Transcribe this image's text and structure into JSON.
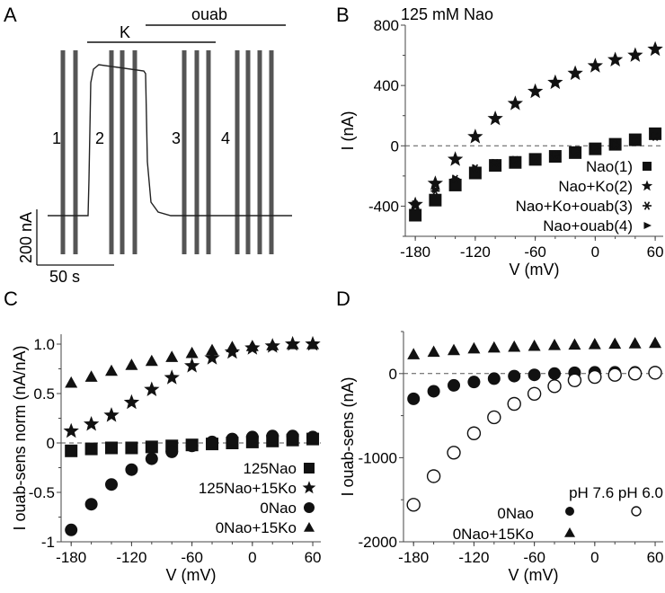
{
  "figure": {
    "panels": [
      "A",
      "B",
      "C",
      "D"
    ]
  },
  "chart_data": [
    {
      "panel": "A",
      "type": "line",
      "title": "",
      "description": "Current trace with voltage-step families",
      "bars": [
        {
          "label": "K",
          "start_frac": 0.17,
          "end_frac": 0.66
        },
        {
          "label": "ouab",
          "start_frac": 0.4,
          "end_frac": 0.93
        }
      ],
      "segment_labels": [
        "1",
        "2",
        "3",
        "4"
      ],
      "scale_bar": {
        "y_label": "200 nA",
        "x_label": "50 s"
      },
      "trace": {
        "baseline_nA": 0,
        "plateau_nA": 440,
        "k_on_frac": 0.16,
        "k_off_frac": 0.4
      },
      "step_groups": [
        2,
        3,
        3,
        4
      ]
    },
    {
      "panel": "B",
      "type": "scatter",
      "title": "125 mM Nao",
      "xlabel": "V (mV)",
      "ylabel": "I (nA)",
      "xlim": [
        -190,
        68
      ],
      "ylim": [
        -600,
        800
      ],
      "xticks": [
        "-180",
        "-120",
        "-60",
        "0",
        "60"
      ],
      "yticks": [
        "800",
        "400",
        "0",
        "-400"
      ],
      "x": [
        -180,
        -160,
        -140,
        -120,
        -100,
        -80,
        -60,
        -40,
        -20,
        0,
        20,
        40,
        60
      ],
      "series": [
        {
          "name": "Nao(1)",
          "marker": "square",
          "values": [
            -460,
            -360,
            -260,
            -180,
            -130,
            -110,
            -90,
            -70,
            -45,
            -20,
            10,
            40,
            80
          ]
        },
        {
          "name": "Nao+Ko(2)",
          "marker": "star",
          "values": [
            -390,
            -250,
            -90,
            60,
            180,
            280,
            360,
            420,
            480,
            530,
            570,
            600,
            640
          ]
        },
        {
          "name": "Nao+Ko+ouab(3)",
          "marker": "asterisk",
          "values": [
            -390,
            -300,
            -220,
            -150,
            -115,
            -95,
            -80,
            -60,
            -40,
            -15,
            5,
            30,
            60
          ]
        },
        {
          "name": "Nao+ouab(4)",
          "marker": "triangle-right",
          "values": [
            -385,
            -290,
            -215,
            -145,
            -110,
            -90,
            -75,
            -55,
            -35,
            -10,
            10,
            35,
            65
          ]
        }
      ]
    },
    {
      "panel": "C",
      "type": "scatter",
      "title": "",
      "xlabel": "V (mV)",
      "ylabel": "I ouab-sens norm (nA/nA)",
      "xlim": [
        -190,
        68
      ],
      "ylim": [
        -1,
        1.1
      ],
      "xticks": [
        "-180",
        "-120",
        "-60",
        "0",
        "60"
      ],
      "yticks": [
        "1.0",
        "0.5",
        "0",
        "-0.5",
        "-1"
      ],
      "x": [
        -180,
        -160,
        -140,
        -120,
        -100,
        -80,
        -60,
        -40,
        -20,
        0,
        20,
        40,
        60
      ],
      "series": [
        {
          "name": "125Nao",
          "marker": "square",
          "values": [
            -0.08,
            -0.06,
            -0.05,
            -0.05,
            -0.04,
            -0.03,
            -0.02,
            -0.01,
            0.0,
            0.01,
            0.02,
            0.03,
            0.04
          ]
        },
        {
          "name": "125Nao+15Ko",
          "marker": "star",
          "values": [
            0.12,
            0.19,
            0.28,
            0.41,
            0.54,
            0.66,
            0.78,
            0.86,
            0.92,
            0.96,
            0.98,
            1.0,
            1.0
          ]
        },
        {
          "name": "0Nao",
          "marker": "circle",
          "values": [
            -0.88,
            -0.62,
            -0.42,
            -0.27,
            -0.16,
            -0.09,
            -0.03,
            0.01,
            0.04,
            0.06,
            0.07,
            0.07,
            0.06
          ]
        },
        {
          "name": "0Nao+15Ko",
          "marker": "triangle",
          "values": [
            0.61,
            0.67,
            0.73,
            0.79,
            0.83,
            0.87,
            0.91,
            0.94,
            0.97,
            0.98,
            0.99,
            1.0,
            1.0
          ]
        }
      ]
    },
    {
      "panel": "D",
      "type": "scatter",
      "title": "",
      "xlabel": "V (mV)",
      "ylabel": "I ouab-sens (nA)",
      "xlim": [
        -190,
        68
      ],
      "ylim": [
        -2000,
        500
      ],
      "xticks": [
        "-180",
        "-120",
        "-60",
        "0",
        "60"
      ],
      "yticks": [
        "0",
        "-1000",
        "-2000"
      ],
      "x": [
        -180,
        -160,
        -140,
        -120,
        -100,
        -80,
        -60,
        -40,
        -20,
        0,
        20,
        40,
        60
      ],
      "legend_header": [
        "pH 7.6",
        "pH 6.0"
      ],
      "series": [
        {
          "name": "0Nao",
          "ph": "7.6",
          "marker": "circle",
          "values": [
            -300,
            -210,
            -140,
            -100,
            -60,
            -30,
            -15,
            0,
            10,
            15,
            15,
            15,
            15
          ]
        },
        {
          "name": "0Nao+15Ko",
          "ph": "7.6",
          "marker": "triangle",
          "values": [
            230,
            260,
            280,
            300,
            310,
            320,
            330,
            340,
            345,
            350,
            355,
            360,
            365
          ]
        },
        {
          "name": "0Nao",
          "ph": "6.0",
          "marker": "circle-open",
          "values": [
            -1560,
            -1220,
            -940,
            -710,
            -520,
            -360,
            -240,
            -150,
            -80,
            -40,
            -15,
            0,
            10
          ]
        }
      ]
    }
  ],
  "labels": {
    "A": "A",
    "B": "B",
    "C": "C",
    "D": "D",
    "b_title": "125 mM Nao",
    "a_k": "K",
    "a_ouab": "ouab",
    "a_seg": [
      "1",
      "2",
      "3",
      "4"
    ],
    "a_scale_y": "200 nA",
    "a_scale_x": "50 s",
    "c_legend": [
      "125Nao",
      "125Nao+15Ko",
      "0Nao",
      "0Nao+15Ko"
    ],
    "b_legend": [
      "Nao",
      "(1)",
      "Nao+Ko",
      "(2)",
      "Nao+Ko+ouab",
      "(3)",
      "Nao+ouab",
      "(4)"
    ],
    "d_legend_header": "pH 7.6 pH 6.0",
    "d_legend": [
      "0Nao",
      "0Nao+15Ko"
    ]
  }
}
